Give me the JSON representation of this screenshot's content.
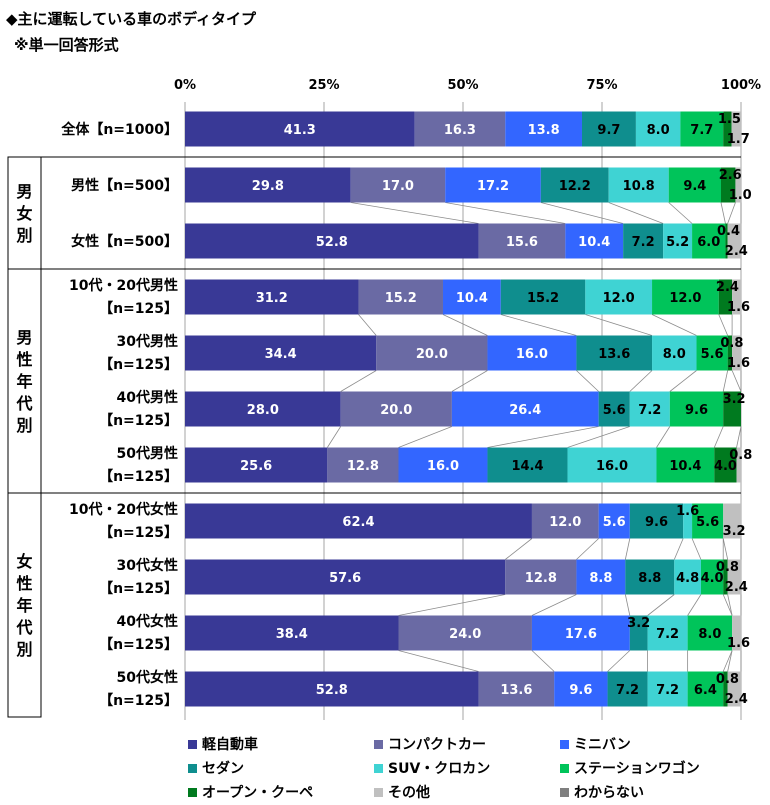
{
  "title_line1": "◆主に運転している車のボディタイプ",
  "title_line2": "※単一回答形式",
  "chart_data": {
    "type": "bar",
    "orientation": "horizontal",
    "stacked": true,
    "xlim": [
      0,
      100
    ],
    "ticks": [
      "0%",
      "25%",
      "50%",
      "75%",
      "100%"
    ],
    "grid": true,
    "legend_position": "bottom",
    "groups": [
      {
        "label": "",
        "rows": [
          0
        ]
      },
      {
        "label": "男女別",
        "rows": [
          1,
          2
        ]
      },
      {
        "label": "男性年代別",
        "rows": [
          3,
          4,
          5,
          6
        ]
      },
      {
        "label": "女性年代別",
        "rows": [
          7,
          8,
          9,
          10
        ]
      }
    ],
    "rows": [
      {
        "label": [
          "全体【n=1000】"
        ]
      },
      {
        "label": [
          "男性【n=500】"
        ]
      },
      {
        "label": [
          "女性【n=500】"
        ]
      },
      {
        "label": [
          "10代・20代男性",
          "【n=125】"
        ]
      },
      {
        "label": [
          "30代男性",
          "【n=125】"
        ]
      },
      {
        "label": [
          "40代男性",
          "【n=125】"
        ]
      },
      {
        "label": [
          "50代男性",
          "【n=125】"
        ]
      },
      {
        "label": [
          "10代・20代女性",
          "【n=125】"
        ]
      },
      {
        "label": [
          "30代女性",
          "【n=125】"
        ]
      },
      {
        "label": [
          "40代女性",
          "【n=125】"
        ]
      },
      {
        "label": [
          "50代女性",
          "【n=125】"
        ]
      }
    ],
    "series": [
      {
        "name": "軽自動車",
        "color": "#393996",
        "values": [
          41.3,
          29.8,
          52.8,
          31.2,
          34.4,
          28.0,
          25.6,
          62.4,
          57.6,
          38.4,
          52.8
        ]
      },
      {
        "name": "コンパクトカー",
        "color": "#6a6aa4",
        "values": [
          16.3,
          17.0,
          15.6,
          15.2,
          20.0,
          20.0,
          12.8,
          12.0,
          12.8,
          24.0,
          13.6
        ]
      },
      {
        "name": "ミニバン",
        "color": "#3366ff",
        "values": [
          13.8,
          17.2,
          10.4,
          10.4,
          16.0,
          26.4,
          16.0,
          5.6,
          8.8,
          17.6,
          9.6
        ]
      },
      {
        "name": "セダン",
        "color": "#0f8e8e",
        "values": [
          9.7,
          12.2,
          7.2,
          15.2,
          13.6,
          5.6,
          14.4,
          9.6,
          8.8,
          3.2,
          7.2
        ]
      },
      {
        "name": "SUV・クロカン",
        "color": "#3fd3d3",
        "values": [
          8.0,
          10.8,
          5.2,
          12.0,
          8.0,
          7.2,
          16.0,
          1.6,
          4.8,
          7.2,
          7.2
        ]
      },
      {
        "name": "ステーションワゴン",
        "color": "#00c45a",
        "values": [
          7.7,
          9.4,
          6.0,
          12.0,
          5.6,
          9.6,
          10.4,
          5.6,
          4.0,
          8.0,
          6.4
        ]
      },
      {
        "name": "オープン・クーペ",
        "color": "#007a1f",
        "values": [
          1.5,
          2.6,
          0.4,
          2.4,
          0.8,
          3.2,
          4.0,
          0,
          0.8,
          0,
          0.8
        ]
      },
      {
        "name": "その他",
        "color": "#c0c0c0",
        "values": [
          1.7,
          1.0,
          2.4,
          1.6,
          1.6,
          0,
          0.8,
          3.2,
          2.4,
          1.6,
          2.4
        ]
      },
      {
        "name": "わからない",
        "color": "#7f7f7f",
        "values": [
          0,
          0,
          0,
          0,
          0,
          0,
          0,
          0,
          0,
          0,
          0
        ]
      }
    ],
    "data_labels": [
      [
        "41.3",
        "16.3",
        "13.8",
        "9.7",
        "8.0",
        "7.7",
        "1.5",
        "1.7"
      ],
      [
        "29.8",
        "17.0",
        "17.2",
        "12.2",
        "10.8",
        "9.4",
        "2.6",
        "1.0"
      ],
      [
        "52.8",
        "15.6",
        "10.4",
        "7.2",
        "5.2",
        "6.0",
        "0.4",
        "2.4"
      ],
      [
        "31.2",
        "15.2",
        "10.4",
        "15.2",
        "12.0",
        "12.0",
        "2.4",
        "1.6"
      ],
      [
        "34.4",
        "20.0",
        "16.0",
        "13.6",
        "8.0",
        "5.6",
        "0.8",
        "1.6"
      ],
      [
        "28.0",
        "20.0",
        "26.4",
        "5.6",
        "7.2",
        "9.6",
        "3.2"
      ],
      [
        "25.6",
        "12.8",
        "16.0",
        "14.4",
        "16.0",
        "10.4",
        "4.0",
        "0.8"
      ],
      [
        "62.4",
        "12.0",
        "5.6",
        "9.6",
        "1.6",
        "5.6",
        "3.2"
      ],
      [
        "57.6",
        "12.8",
        "8.8",
        "8.8",
        "4.8",
        "4.0",
        "0.8",
        "2.4"
      ],
      [
        "38.4",
        "24.0",
        "17.6",
        "3.2",
        "7.2",
        "8.0",
        "1.6"
      ],
      [
        "52.8",
        "13.6",
        "9.6",
        "7.2",
        "7.2",
        "6.4",
        "0.8",
        "2.4"
      ]
    ]
  }
}
